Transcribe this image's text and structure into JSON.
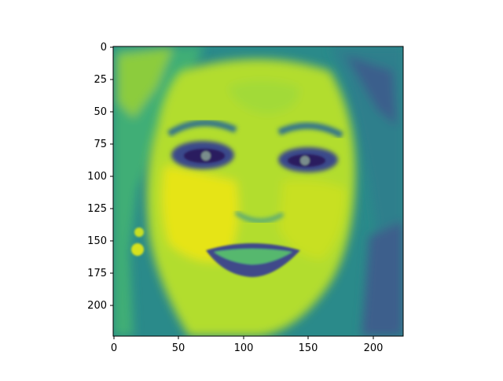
{
  "image": {
    "subject": "face",
    "colormap": "viridis",
    "colormap_stops": [
      "#440154",
      "#3b528b",
      "#21918c",
      "#5ec962",
      "#fde725"
    ]
  },
  "axes": {
    "x_ticks": [
      "0",
      "50",
      "100",
      "150",
      "200"
    ],
    "y_ticks": [
      "0",
      "25",
      "50",
      "75",
      "100",
      "125",
      "150",
      "175",
      "200"
    ],
    "xlim": [
      0,
      224
    ],
    "ylim": [
      224,
      0
    ],
    "grid": false
  }
}
